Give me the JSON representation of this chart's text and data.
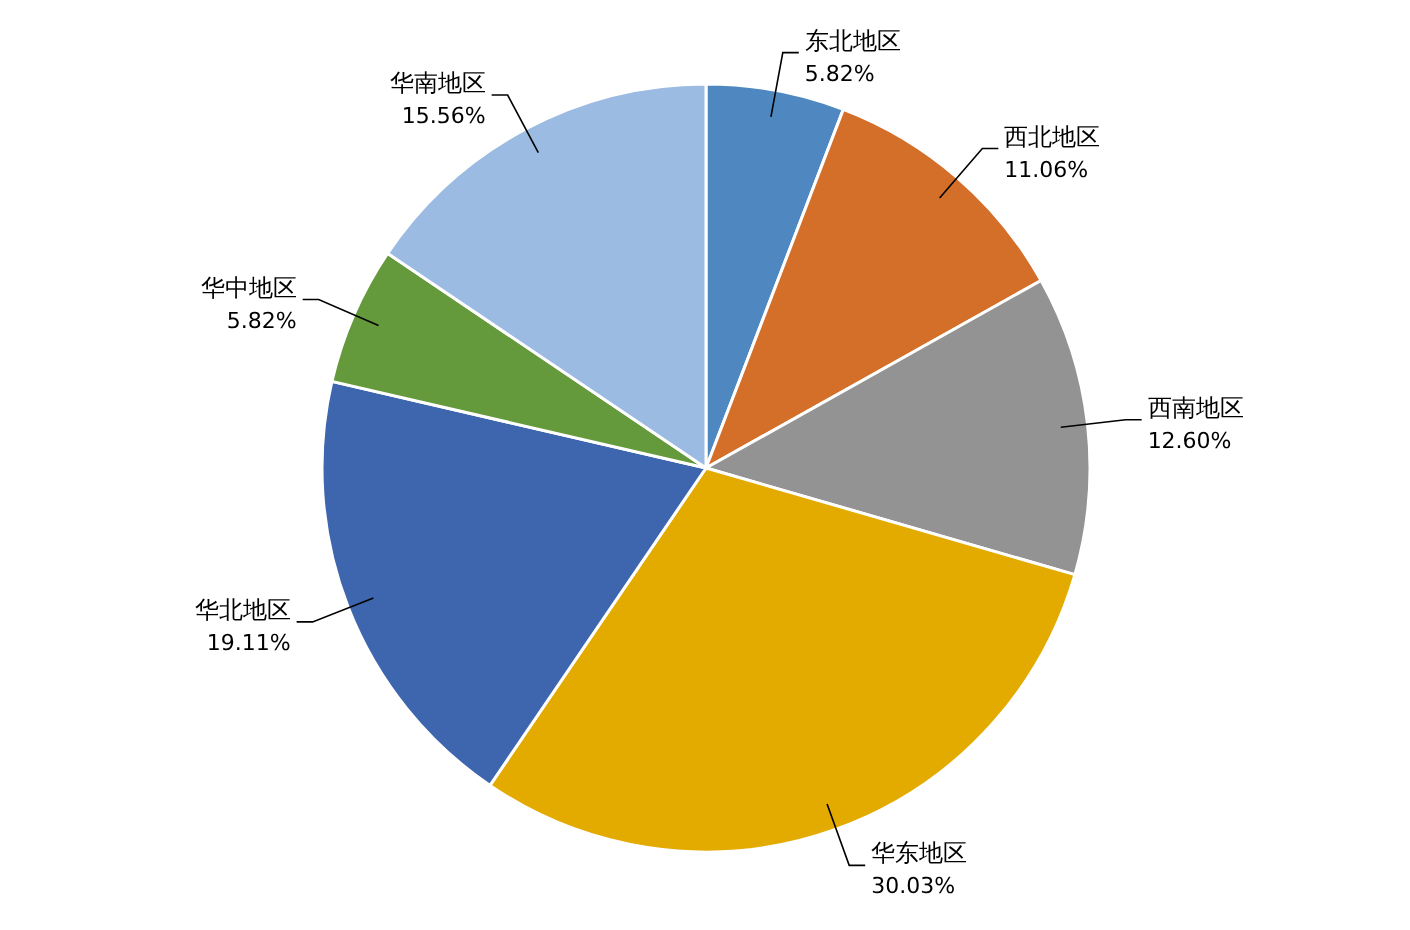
{
  "chart_data": {
    "type": "pie",
    "categories": [
      "东北地区",
      "西北地区",
      "西南地区",
      "华东地区",
      "华北地区",
      "华中地区",
      "华南地区"
    ],
    "values": [
      5.82,
      11.06,
      12.6,
      30.03,
      19.11,
      5.82,
      15.56
    ],
    "colors": [
      "#4f88c0",
      "#d46f2a",
      "#939393",
      "#e3aa00",
      "#3d66ae",
      "#64993c",
      "#9cbbe2"
    ],
    "value_labels": [
      "5.82%",
      "11.06%",
      "12.60%",
      "30.03%",
      "19.11%",
      "5.82%",
      "15.56%"
    ]
  }
}
